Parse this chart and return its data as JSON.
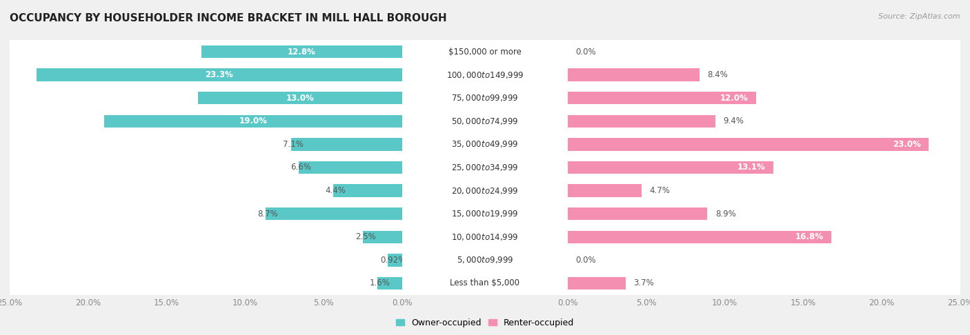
{
  "title": "OCCUPANCY BY HOUSEHOLDER INCOME BRACKET IN MILL HALL BOROUGH",
  "source": "Source: ZipAtlas.com",
  "categories": [
    "Less than $5,000",
    "$5,000 to $9,999",
    "$10,000 to $14,999",
    "$15,000 to $19,999",
    "$20,000 to $24,999",
    "$25,000 to $34,999",
    "$35,000 to $49,999",
    "$50,000 to $74,999",
    "$75,000 to $99,999",
    "$100,000 to $149,999",
    "$150,000 or more"
  ],
  "owner_values": [
    1.6,
    0.92,
    2.5,
    8.7,
    4.4,
    6.6,
    7.1,
    19.0,
    13.0,
    23.3,
    12.8
  ],
  "renter_values": [
    3.7,
    0.0,
    16.8,
    8.9,
    4.7,
    13.1,
    23.0,
    9.4,
    12.0,
    8.4,
    0.0
  ],
  "owner_color": "#5bc8c8",
  "renter_color": "#f48fb1",
  "background_color": "#f0f0f0",
  "row_color": "#ffffff",
  "axis_max": 25.0,
  "bar_height": 0.55,
  "title_fontsize": 11,
  "label_fontsize": 8.5,
  "cat_fontsize": 8.5,
  "tick_fontsize": 8.5,
  "legend_fontsize": 9,
  "owner_label": "Owner-occupied",
  "renter_label": "Renter-occupied"
}
